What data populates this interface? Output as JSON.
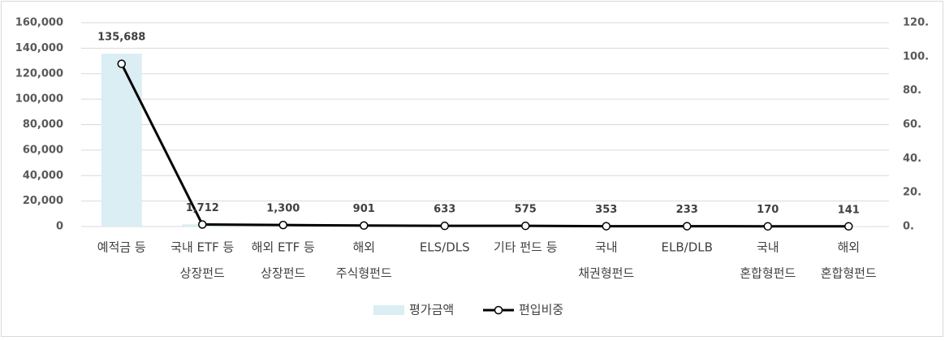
{
  "chart_data": {
    "type": "bar-line",
    "categories": [
      [
        "예적금 등"
      ],
      [
        "국내 ETF 등",
        "상장펀드"
      ],
      [
        "해외 ETF 등",
        "상장펀드"
      ],
      [
        "해외",
        "주식형펀드"
      ],
      [
        "ELS/DLS"
      ],
      [
        "기타 펀드 등"
      ],
      [
        "국내",
        "채권형펀드"
      ],
      [
        "ELB/DLB"
      ],
      [
        "국내",
        "혼합형펀드"
      ],
      [
        "해외",
        "혼합형펀드"
      ]
    ],
    "series": [
      {
        "name": "평가금액",
        "type": "bar",
        "color": "#daeef3",
        "values": [
          135688,
          1712,
          1300,
          901,
          633,
          575,
          353,
          233,
          170,
          141
        ],
        "value_labels": [
          "135,688",
          "1,712",
          "1,300",
          "901",
          "633",
          "575",
          "353",
          "233",
          "170",
          "141"
        ]
      },
      {
        "name": "편입비중",
        "type": "line",
        "axis": "y2",
        "color": "#000000",
        "values": [
          95.8,
          1.2,
          0.9,
          0.6,
          0.4,
          0.4,
          0.2,
          0.2,
          0.1,
          0.1
        ]
      }
    ],
    "ylim": [
      0,
      160000
    ],
    "yticks": [
      0,
      {
        "value": 20000,
        "label": "20,000"
      },
      {
        "value": 40000,
        "label": "40,000"
      },
      {
        "value": 60000,
        "label": "60,000"
      },
      {
        "value": 80000,
        "label": "80,000"
      },
      {
        "value": 100000,
        "label": "100,000"
      },
      {
        "value": 120000,
        "label": "120,000"
      },
      {
        "value": 140000,
        "label": "140,000"
      },
      {
        "value": 160000,
        "label": "160,000"
      }
    ],
    "y2lim": [
      0,
      120
    ],
    "y2ticks": [
      {
        "value": 0,
        "label": "0."
      },
      {
        "value": 20,
        "label": "20."
      },
      {
        "value": 40,
        "label": "40."
      },
      {
        "value": 60,
        "label": "60."
      },
      {
        "value": 80,
        "label": "80."
      },
      {
        "value": 100,
        "label": "100."
      },
      {
        "value": 120,
        "label": "120."
      }
    ],
    "grid": true,
    "legend": "bottom"
  }
}
